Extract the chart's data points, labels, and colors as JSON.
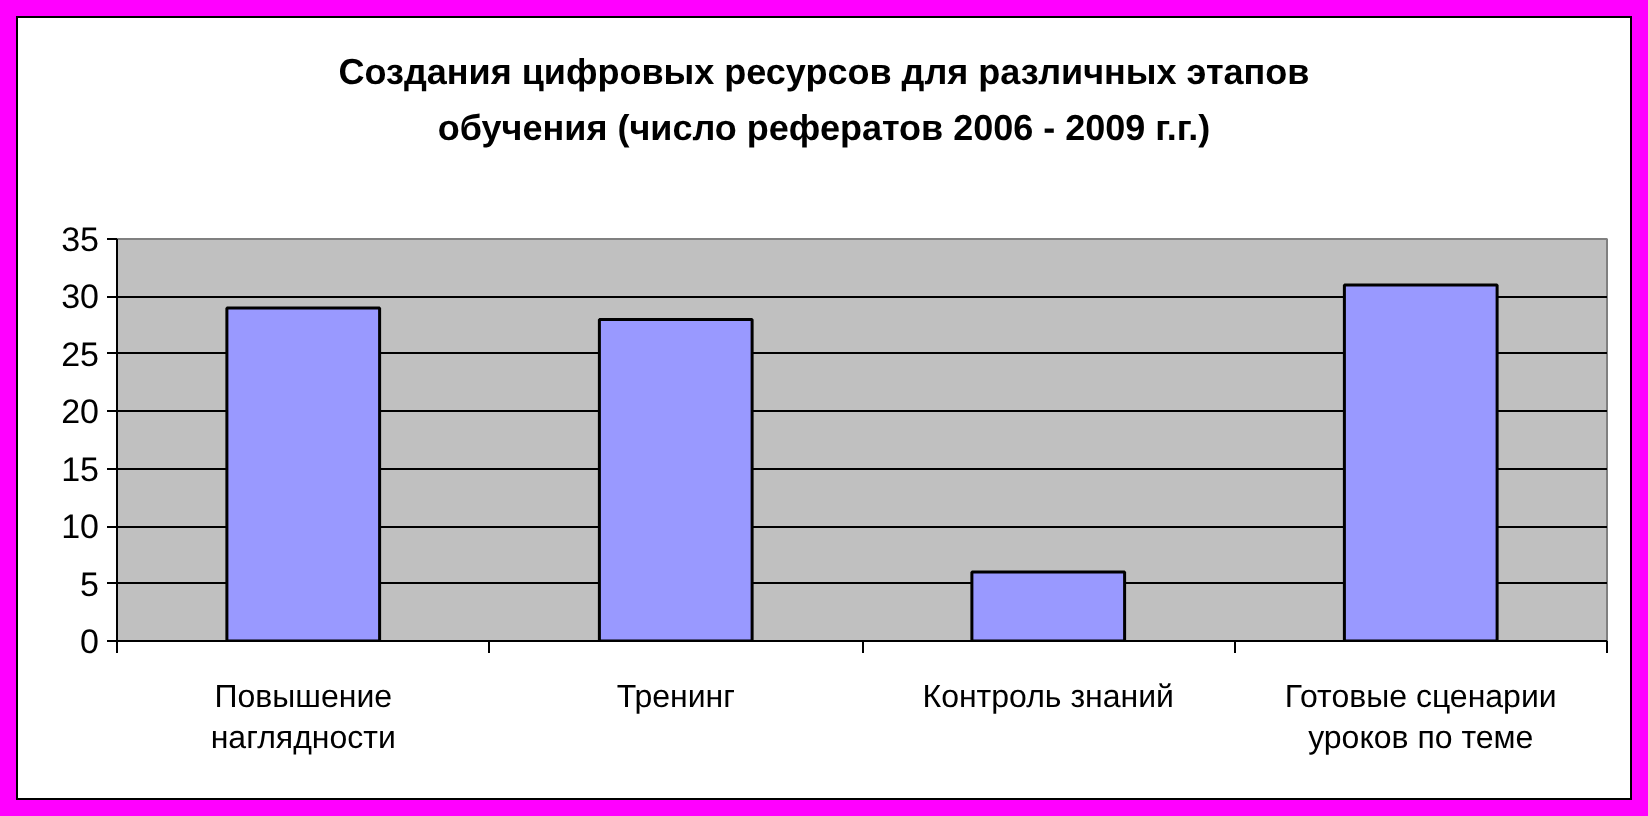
{
  "chart_data": {
    "type": "bar",
    "title": "Создания цифровых ресурсов для различных этапов обучения (число рефератов 2006 - 2009 г.г.)",
    "categories": [
      "Повышение наглядности",
      "Тренинг",
      "Контроль знаний",
      "Готовые сценарии уроков по теме"
    ],
    "values": [
      29,
      28,
      6,
      31
    ],
    "color": "#9999ff",
    "ylim": [
      0,
      35
    ],
    "yticks": [
      0,
      5,
      10,
      15,
      20,
      25,
      30,
      35
    ],
    "grid": "y"
  }
}
